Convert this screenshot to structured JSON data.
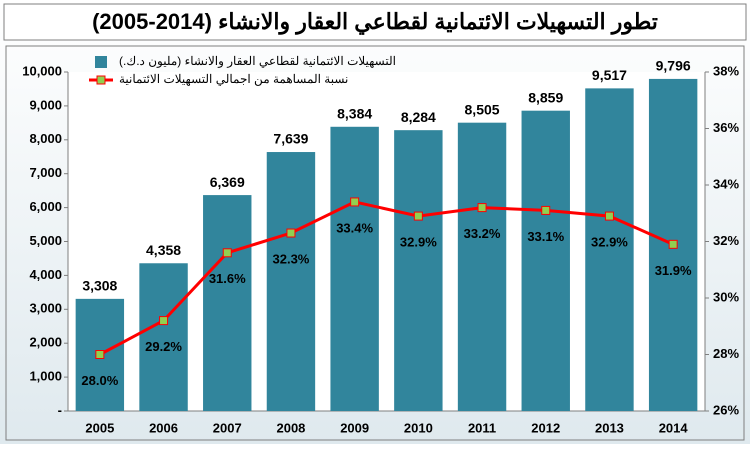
{
  "chart_data": {
    "type": "bar",
    "title": "تطور التسهيلات الائتمانية لقطاعي العقار والانشاء (2014-2005)",
    "categories": [
      "2005",
      "2006",
      "2007",
      "2008",
      "2009",
      "2010",
      "2011",
      "2012",
      "2013",
      "2014"
    ],
    "series": [
      {
        "name": "التسهيلات الائتمانية لقطاعي العقار والانشاء (مليون د.ك.)",
        "color": "#31859c",
        "type": "bar",
        "values": [
          3308,
          4358,
          6369,
          7639,
          8384,
          8284,
          8505,
          8859,
          9517,
          9796
        ],
        "value_labels": [
          "3,308",
          "4,358",
          "6,369",
          "7,639",
          "8,384",
          "8,284",
          "8,505",
          "8,859",
          "9,517",
          "9,796"
        ]
      },
      {
        "name": "نسبة المساهمة من اجمالي التسهيلات الائتمانية",
        "color": "#ff0000",
        "marker_color": "#92d050",
        "type": "line",
        "axis": "y2",
        "values": [
          28.0,
          29.2,
          31.6,
          32.3,
          33.4,
          32.9,
          33.2,
          33.1,
          32.9,
          31.9
        ],
        "value_labels": [
          "28.0%",
          "29.2%",
          "31.6%",
          "32.3%",
          "33.4%",
          "32.9%",
          "33.2%",
          "33.1%",
          "32.9%",
          "31.9%"
        ]
      }
    ],
    "ylim": [
      0,
      10000
    ],
    "yticks": [
      {
        "value": 0,
        "label": "-"
      },
      {
        "value": 1000,
        "label": "1,000"
      },
      {
        "value": 2000,
        "label": "2,000"
      },
      {
        "value": 3000,
        "label": "3,000"
      },
      {
        "value": 4000,
        "label": "4,000"
      },
      {
        "value": 5000,
        "label": "5,000"
      },
      {
        "value": 6000,
        "label": "6,000"
      },
      {
        "value": 7000,
        "label": "7,000"
      },
      {
        "value": 8000,
        "label": "8,000"
      },
      {
        "value": 9000,
        "label": "9,000"
      },
      {
        "value": 10000,
        "label": "10,000"
      }
    ],
    "y2lim": [
      26,
      38
    ],
    "y2ticks": [
      {
        "value": 26,
        "label": "26%"
      },
      {
        "value": 28,
        "label": "28%"
      },
      {
        "value": 30,
        "label": "30%"
      },
      {
        "value": 32,
        "label": "32%"
      },
      {
        "value": 34,
        "label": "34%"
      },
      {
        "value": 36,
        "label": "36%"
      },
      {
        "value": 38,
        "label": "38%"
      }
    ],
    "grid": false
  }
}
